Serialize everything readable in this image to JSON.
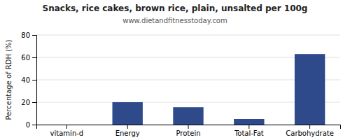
{
  "chart_data": {
    "type": "bar",
    "title": "Snacks, rice cakes, brown rice, plain, unsalted per 100g",
    "subtitle": "www.dietandfitnesstoday.com",
    "categories": [
      "vitamin-d",
      "Energy",
      "Protein",
      "Total-Fat",
      "Carbohydrate"
    ],
    "values": [
      0,
      20,
      15.5,
      5,
      63
    ],
    "color": "#2e4a8a",
    "ylabel": "Percentage of RDH (%)",
    "ylim": [
      0,
      80
    ],
    "yticks": [
      0,
      20,
      40,
      60,
      80
    ],
    "grid": true
  }
}
